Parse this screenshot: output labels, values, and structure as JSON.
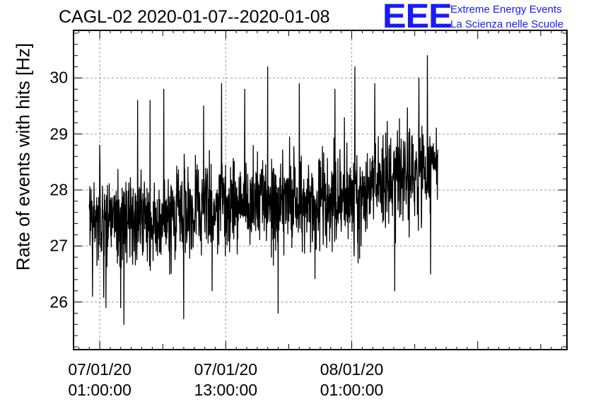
{
  "chart_data": {
    "type": "line",
    "title": "CAGL-02 2020-01-07--2020-01-08",
    "ylabel": "Rate of events with hits [Hz]",
    "xlabel": "",
    "x_unit": "hours after 07/01/20 00:00:00",
    "xlim": [
      -1.5,
      45.5
    ],
    "ylim": [
      25.15,
      30.85
    ],
    "yticks": [
      26,
      27,
      28,
      29,
      30
    ],
    "xticks": [
      {
        "x": 1,
        "line1": "07/01/20",
        "line2": "01:00:00"
      },
      {
        "x": 13,
        "line1": "07/01/20",
        "line2": "13:00:00"
      },
      {
        "x": 25,
        "line1": "08/01/20",
        "line2": "01:00:00"
      }
    ],
    "grid": true,
    "series": [
      {
        "color": "#000000",
        "x_start": 0.0,
        "x_end": 33.2,
        "n_points": 1400,
        "seed": 20200107,
        "trend": [
          [
            0,
            27.5
          ],
          [
            4,
            27.4
          ],
          [
            8,
            27.5
          ],
          [
            12,
            27.7
          ],
          [
            16,
            27.8
          ],
          [
            20,
            27.7
          ],
          [
            24,
            27.9
          ],
          [
            28,
            28.1
          ],
          [
            33.2,
            28.4
          ]
        ],
        "noise_sd": 0.42,
        "spikes": [
          {
            "x": 0.3,
            "y": 26.1
          },
          {
            "x": 1.0,
            "y": 28.8
          },
          {
            "x": 1.6,
            "y": 25.9
          },
          {
            "x": 3.0,
            "y": 25.9
          },
          {
            "x": 3.3,
            "y": 25.6
          },
          {
            "x": 4.6,
            "y": 29.6
          },
          {
            "x": 5.8,
            "y": 29.6
          },
          {
            "x": 7.1,
            "y": 29.8
          },
          {
            "x": 9.0,
            "y": 25.7
          },
          {
            "x": 10.9,
            "y": 29.5
          },
          {
            "x": 11.7,
            "y": 26.2
          },
          {
            "x": 12.6,
            "y": 29.9
          },
          {
            "x": 14.8,
            "y": 29.8
          },
          {
            "x": 17.0,
            "y": 30.2
          },
          {
            "x": 18.0,
            "y": 25.8
          },
          {
            "x": 20.0,
            "y": 29.9
          },
          {
            "x": 23.4,
            "y": 29.8
          },
          {
            "x": 25.3,
            "y": 30.2
          },
          {
            "x": 27.2,
            "y": 29.9
          },
          {
            "x": 28.6,
            "y": 28.8
          },
          {
            "x": 29.1,
            "y": 26.2
          },
          {
            "x": 31.4,
            "y": 30.0
          },
          {
            "x": 32.2,
            "y": 30.4
          },
          {
            "x": 32.5,
            "y": 26.5
          }
        ]
      }
    ]
  },
  "logo": {
    "mark": "EEE",
    "line1": "Extreme Energy Events",
    "line2": "La Scienza nelle Scuole"
  }
}
